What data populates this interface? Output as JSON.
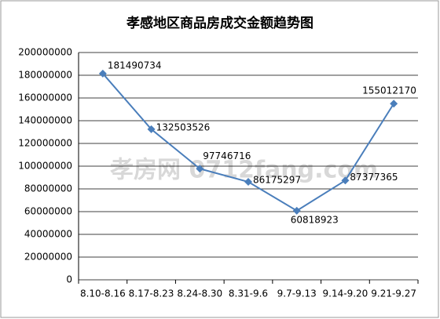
{
  "chart_data": {
    "type": "line",
    "title": "孝感地区商品房成交金额趋势图",
    "watermark": "孝房网 0712fang.com",
    "categories": [
      "8.10-8.16",
      "8.17-8.23",
      "8.24-8.30",
      "8.31-9.6",
      "9.7-9.13",
      "9.14-9.20",
      "9.21-9.27"
    ],
    "values": [
      181490734,
      132503526,
      97746716,
      86175297,
      60818923,
      87377365,
      155012170
    ],
    "color": "#4a7ebb",
    "ylim": [
      0,
      200000000
    ],
    "yticks": [
      0,
      20000000,
      40000000,
      60000000,
      80000000,
      100000000,
      120000000,
      140000000,
      160000000,
      180000000,
      200000000
    ],
    "grid": true
  }
}
